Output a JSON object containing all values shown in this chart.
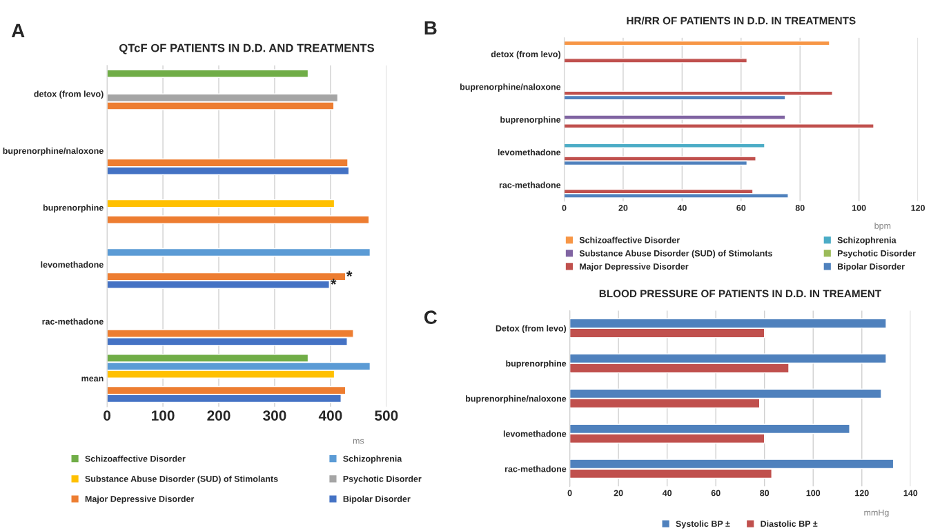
{
  "chart_data": [
    {
      "type": "bar",
      "orientation": "horizontal",
      "title": "QTcF OF PATIENTS IN D.D. AND TREATMENTS",
      "xlabel": "ms",
      "categories": [
        "detox (from levo)",
        "buprenorphine/naloxone",
        "buprenorphine",
        "levomethadone",
        "rac-methadone",
        "mean"
      ],
      "series": [
        {
          "name": "Schizoaffective Disorder",
          "color": "#70ad47",
          "values": [
            360,
            null,
            null,
            null,
            null,
            360
          ]
        },
        {
          "name": "Schizophrenia",
          "color": "#5b9bd5",
          "values": [
            null,
            null,
            null,
            471,
            null,
            471
          ]
        },
        {
          "name": "Substance Abuse Disorder (SUD) of Stimolants",
          "color": "#ffc000",
          "values": [
            null,
            null,
            407,
            null,
            null,
            407
          ]
        },
        {
          "name": "Psychotic Disorder",
          "color": "#a5a5a5",
          "values": [
            413,
            null,
            null,
            null,
            null,
            null
          ]
        },
        {
          "name": "Major Depressive Disorder",
          "color": "#ed7d31",
          "values": [
            406,
            431,
            469,
            427,
            441,
            427
          ]
        },
        {
          "name": "Bipolar Disorder",
          "color": "#4472c4",
          "values": [
            null,
            433,
            null,
            398,
            430,
            419
          ]
        }
      ],
      "xlim": [
        0,
        500
      ],
      "xticks": [
        0,
        100,
        200,
        300,
        400,
        500
      ],
      "grid": "x",
      "legend": "bottom",
      "annotations": [
        "A",
        "*",
        "*"
      ]
    },
    {
      "type": "bar",
      "orientation": "horizontal",
      "title": "HR/RR OF PATIENTS IN D.D. IN TREATMENTS",
      "xlabel": "bpm",
      "categories": [
        "detox (from levo)",
        "buprenorphine/naloxone",
        "buprenorphine",
        "levomethadone",
        "rac-methadone"
      ],
      "series": [
        {
          "name": "Schizoaffective Disorder",
          "color": "#f79646",
          "values": [
            90,
            null,
            null,
            null,
            null
          ]
        },
        {
          "name": "Schizophrenia",
          "color": "#4bacc6",
          "values": [
            null,
            null,
            null,
            68,
            null
          ]
        },
        {
          "name": "Substance Abuse Disorder (SUD) of Stimolants",
          "color": "#8064a2",
          "values": [
            null,
            null,
            75,
            null,
            null
          ]
        },
        {
          "name": "Psychotic Disorder",
          "color": "#9bbb59",
          "values": [
            null,
            null,
            null,
            null,
            null
          ]
        },
        {
          "name": "Major Depressive Disorder",
          "color": "#c0504d",
          "values": [
            62,
            91,
            105,
            65,
            64
          ]
        },
        {
          "name": "Bipolar Disorder",
          "color": "#4f81bd",
          "values": [
            null,
            75,
            null,
            62,
            76
          ]
        }
      ],
      "xlim": [
        0,
        120
      ],
      "xticks": [
        0,
        20,
        40,
        60,
        80,
        100,
        120
      ],
      "grid": "x",
      "legend": "bottom",
      "annotations": [
        "B"
      ]
    },
    {
      "type": "bar",
      "orientation": "horizontal",
      "title": "BLOOD PRESSURE OF PATIENTS IN D.D. IN TREAMENT",
      "xlabel": "mmHg",
      "categories": [
        "Detox (from levo)",
        "buprenorphine",
        "buprenorphine/naloxone",
        "levomethadone",
        "rac-methadone"
      ],
      "series": [
        {
          "name": "Systolic BP ±",
          "color": "#4f81bd",
          "values": [
            130,
            130,
            128,
            115,
            133
          ]
        },
        {
          "name": "Diastolic BP ±",
          "color": "#c0504d",
          "values": [
            80,
            90,
            78,
            80,
            83
          ]
        }
      ],
      "xlim": [
        0,
        140
      ],
      "xticks": [
        0,
        20,
        40,
        60,
        80,
        100,
        120,
        140
      ],
      "grid": "x",
      "legend": "bottom",
      "annotations": [
        "C"
      ]
    }
  ]
}
